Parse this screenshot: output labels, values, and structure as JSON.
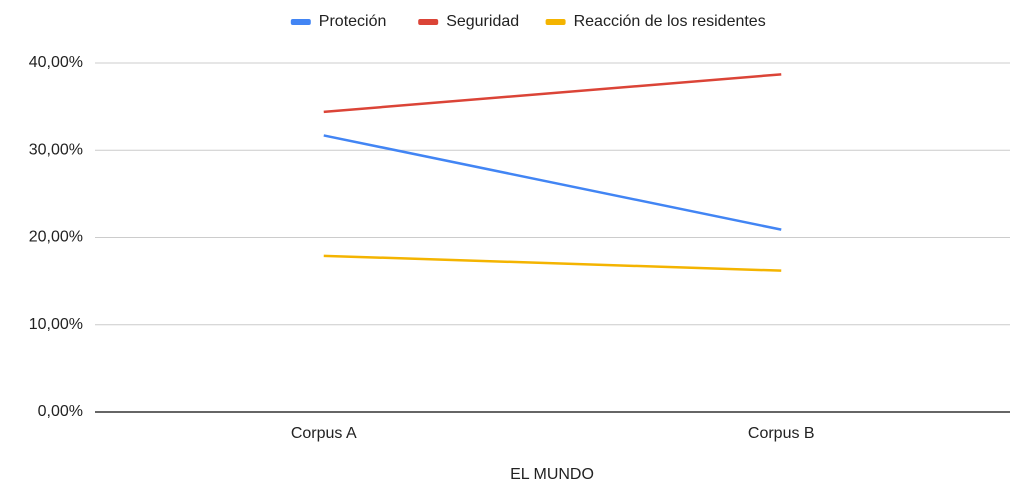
{
  "chart_data": {
    "type": "line",
    "x_label": "EL MUNDO",
    "categories": [
      "Corpus A",
      "Corpus B"
    ],
    "series": [
      {
        "name": "Proteción",
        "color": "#4285f4",
        "values": [
          31.7,
          20.9
        ]
      },
      {
        "name": "Seguridad",
        "color": "#db4437",
        "values": [
          34.4,
          38.7
        ]
      },
      {
        "name": "Reacción de los residentes",
        "color": "#f4b400",
        "values": [
          17.9,
          16.2
        ]
      }
    ],
    "ylim": [
      0,
      40
    ],
    "yticks": [
      {
        "value": 0,
        "label": "0,00%"
      },
      {
        "value": 10,
        "label": "10,00%"
      },
      {
        "value": 20,
        "label": "20,00%"
      },
      {
        "value": 30,
        "label": "30,00%"
      },
      {
        "value": 40,
        "label": "40,00%"
      }
    ],
    "grid": true,
    "legend": "top"
  }
}
